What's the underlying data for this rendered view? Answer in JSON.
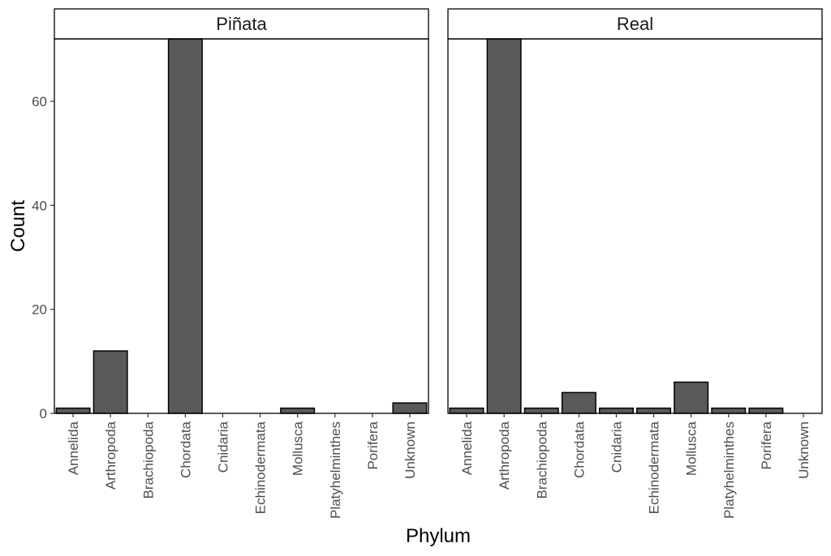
{
  "chart_data": {
    "type": "bar",
    "xlabel": "Phylum",
    "ylabel": "Count",
    "ylim": [
      0,
      72
    ],
    "yticks": [
      0,
      20,
      40,
      60
    ],
    "categories": [
      "Annelida",
      "Arthropoda",
      "Brachiopoda",
      "Chordata",
      "Cnidaria",
      "Echinodermata",
      "Mollusca",
      "Platyhelminthes",
      "Porifera",
      "Unknown"
    ],
    "facets": [
      {
        "label": "Piñata",
        "values": [
          1,
          12,
          0,
          72,
          0,
          0,
          1,
          0,
          0,
          2
        ]
      },
      {
        "label": "Real",
        "values": [
          1,
          72,
          1,
          4,
          1,
          1,
          6,
          1,
          1,
          0
        ]
      }
    ],
    "bar_color": "#595959",
    "grid": false
  }
}
